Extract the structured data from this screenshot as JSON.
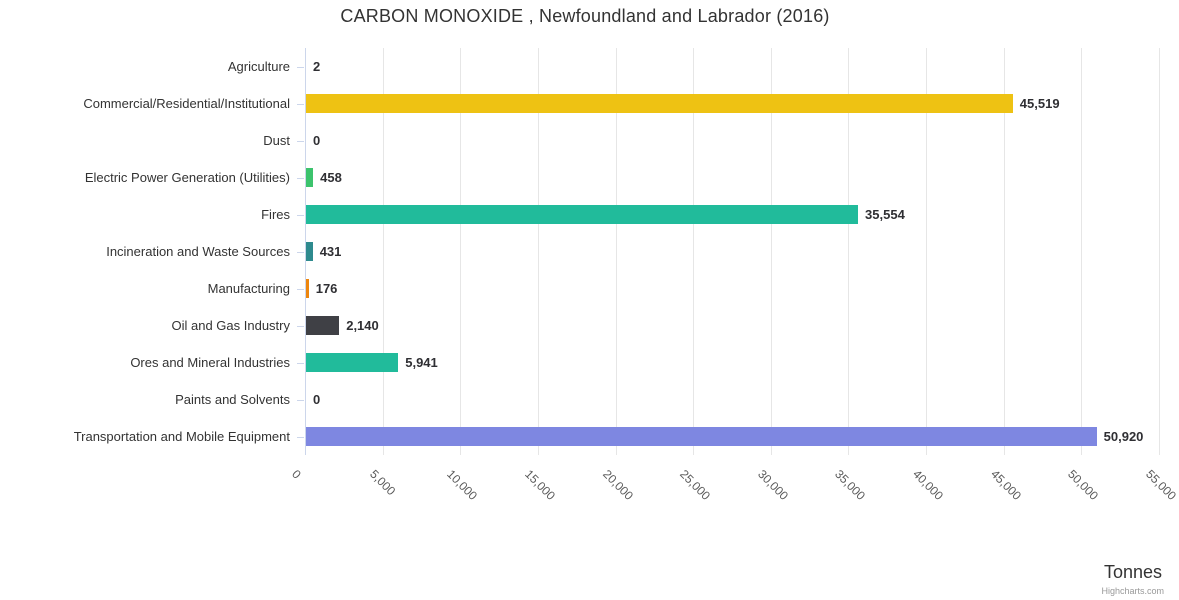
{
  "chart_data": {
    "type": "bar",
    "title": "CARBON MONOXIDE , Newfoundland and Labrador (2016)",
    "categories": [
      "Agriculture",
      "Commercial/Residential/Institutional",
      "Dust",
      "Electric Power Generation (Utilities)",
      "Fires",
      "Incineration and Waste Sources",
      "Manufacturing",
      "Oil and Gas Industry",
      "Ores and Mineral Industries",
      "Paints and Solvents",
      "Transportation and Mobile Equipment"
    ],
    "values": [
      2,
      45519,
      0,
      458,
      35554,
      431,
      176,
      2140,
      5941,
      0,
      50920
    ],
    "value_labels": [
      "2",
      "45,519",
      "0",
      "458",
      "35,554",
      "431",
      "176",
      "2,140",
      "5,941",
      "0",
      "50,920"
    ],
    "bar_colors": [
      "#999999",
      "#eec213",
      "#999999",
      "#3cc36d",
      "#21bb9b",
      "#2e8a8e",
      "#ed860e",
      "#3f4045",
      "#21bb9b",
      "#999999",
      "#7e87e1"
    ],
    "xlabel": "",
    "ylabel": "Tonnes",
    "axis_min": 0,
    "axis_max": 55000,
    "tick_interval": 5000,
    "tick_labels": [
      "0",
      "5,000",
      "10,000",
      "15,000",
      "20,000",
      "25,000",
      "30,000",
      "35,000",
      "40,000",
      "45,000",
      "50,000",
      "55,000"
    ],
    "grid": "vertical-on",
    "legend": "none",
    "gridline_color": "#e6e6e6",
    "axis_line_color": "#ccd6eb",
    "credits": "Highcharts.com"
  }
}
